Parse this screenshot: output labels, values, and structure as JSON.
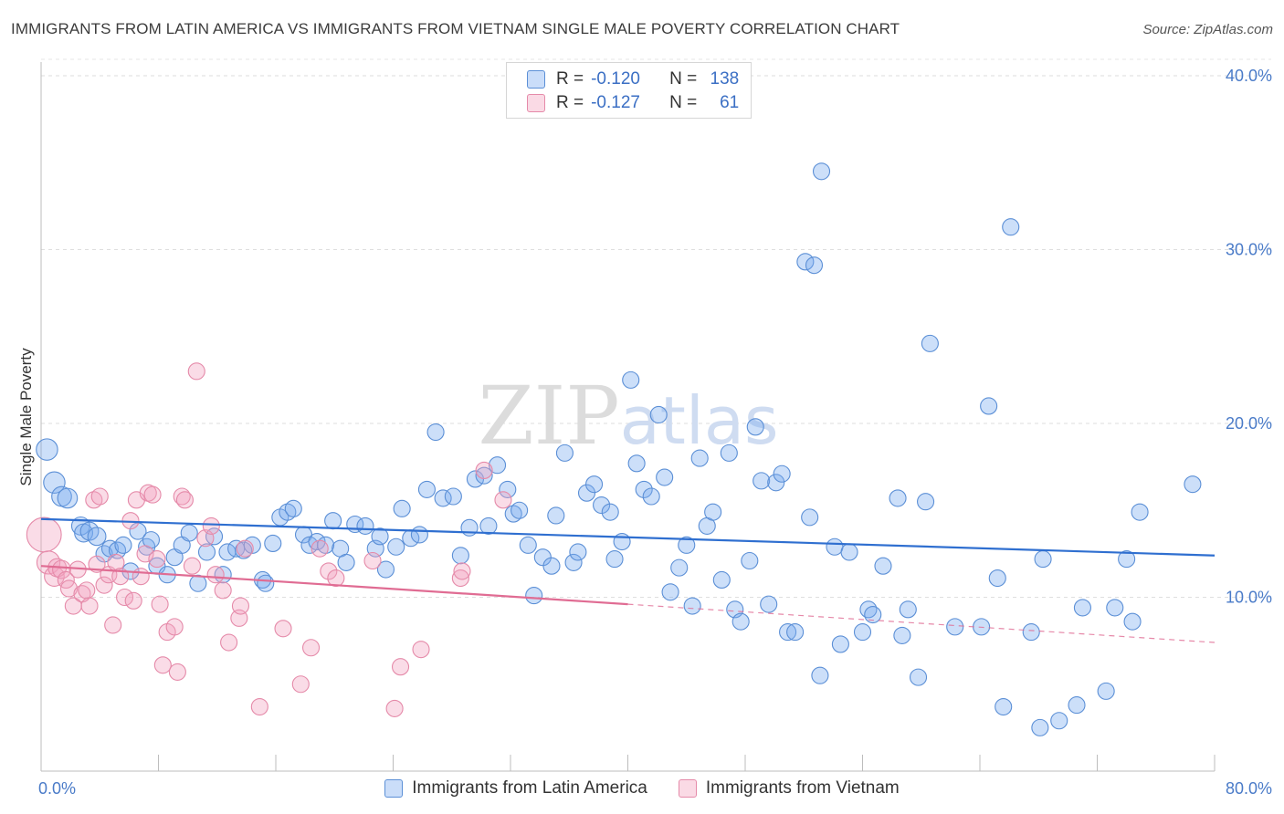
{
  "title": "IMMIGRANTS FROM LATIN AMERICA VS IMMIGRANTS FROM VIETNAM SINGLE MALE POVERTY CORRELATION CHART",
  "source": "Source: ZipAtlas.com",
  "watermark": {
    "part1": "ZIP",
    "part2": "atlas"
  },
  "legend": {
    "rows": [
      {
        "r_label": "R =",
        "r_value": "-0.120",
        "n_label": "N =",
        "n_value": "138",
        "color": "#7aaaf0"
      },
      {
        "r_label": "R =",
        "r_value": "-0.127",
        "n_label": "N =",
        "n_value": "61",
        "color": "#f3a3bf"
      }
    ]
  },
  "chart_data": {
    "type": "scatter",
    "xlabel": "",
    "ylabel": "Single Male Poverty",
    "xlim": [
      0,
      80
    ],
    "ylim": [
      0,
      40
    ],
    "x_tick_labels": [
      "0.0%",
      "80.0%"
    ],
    "y_ticks": [
      10,
      20,
      30,
      40
    ],
    "y_tick_labels": [
      "10.0%",
      "20.0%",
      "30.0%",
      "40.0%"
    ],
    "grid": "horizontal dashed",
    "legend_position": "top-center and bottom",
    "series": [
      {
        "name": "Immigrants from Latin America",
        "color": "#7aaaf0",
        "stroke": "#5b8fd6",
        "trend": {
          "x": [
            0,
            80
          ],
          "y": [
            14.5,
            12.4
          ],
          "color": "#2f6fd0"
        },
        "points": [
          [
            0.4,
            18.5,
            1.3
          ],
          [
            0.9,
            16.6,
            1.3
          ],
          [
            1.4,
            15.8,
            1.2
          ],
          [
            1.8,
            15.7,
            1.2
          ],
          [
            2.7,
            14.1,
            1.1
          ],
          [
            2.9,
            13.7,
            1.1
          ],
          [
            3.3,
            13.8,
            1.1
          ],
          [
            3.8,
            13.5,
            1.1
          ],
          [
            4.3,
            12.5,
            1
          ],
          [
            4.7,
            12.8,
            1
          ],
          [
            5.2,
            12.7,
            1
          ],
          [
            5.6,
            13.0,
            1
          ],
          [
            6.1,
            11.5,
            1
          ],
          [
            6.6,
            13.8,
            1
          ],
          [
            7.2,
            12.9,
            1
          ],
          [
            7.5,
            13.3,
            1
          ],
          [
            7.9,
            11.8,
            1
          ],
          [
            8.6,
            11.3,
            1
          ],
          [
            9.1,
            12.3,
            1
          ],
          [
            9.6,
            13.0,
            1
          ],
          [
            10.1,
            13.7,
            1
          ],
          [
            10.7,
            10.8,
            1
          ],
          [
            11.3,
            12.6,
            1
          ],
          [
            11.8,
            13.5,
            1
          ],
          [
            12.4,
            11.3,
            1
          ],
          [
            12.7,
            12.6,
            1
          ],
          [
            13.3,
            12.8,
            1
          ],
          [
            13.8,
            12.7,
            1
          ],
          [
            14.4,
            13.0,
            1
          ],
          [
            15.1,
            11.0,
            1
          ],
          [
            15.3,
            10.8,
            1
          ],
          [
            15.8,
            13.1,
            1
          ],
          [
            16.3,
            14.6,
            1
          ],
          [
            16.8,
            14.9,
            1
          ],
          [
            17.2,
            15.1,
            1
          ],
          [
            17.9,
            13.6,
            1
          ],
          [
            18.3,
            13.0,
            1
          ],
          [
            18.8,
            13.2,
            1
          ],
          [
            19.4,
            13.0,
            1
          ],
          [
            19.9,
            14.4,
            1
          ],
          [
            20.4,
            12.8,
            1
          ],
          [
            20.8,
            12.0,
            1
          ],
          [
            21.4,
            14.2,
            1
          ],
          [
            22.1,
            14.1,
            1
          ],
          [
            22.8,
            12.8,
            1
          ],
          [
            23.1,
            13.5,
            1
          ],
          [
            23.5,
            11.6,
            1
          ],
          [
            24.2,
            12.9,
            1
          ],
          [
            24.6,
            15.1,
            1
          ],
          [
            25.2,
            13.4,
            1
          ],
          [
            25.8,
            13.6,
            1
          ],
          [
            26.3,
            16.2,
            1
          ],
          [
            26.9,
            19.5,
            1
          ],
          [
            27.4,
            15.7,
            1
          ],
          [
            28.1,
            15.8,
            1
          ],
          [
            28.6,
            12.4,
            1
          ],
          [
            29.2,
            14.0,
            1
          ],
          [
            29.6,
            16.8,
            1
          ],
          [
            30.2,
            17.0,
            1
          ],
          [
            30.5,
            14.1,
            1
          ],
          [
            31.1,
            17.6,
            1
          ],
          [
            31.8,
            16.2,
            1
          ],
          [
            32.2,
            14.8,
            1
          ],
          [
            32.6,
            15.0,
            1
          ],
          [
            33.2,
            13.0,
            1
          ],
          [
            33.6,
            10.1,
            1
          ],
          [
            34.2,
            12.3,
            1
          ],
          [
            34.8,
            11.8,
            1
          ],
          [
            35.1,
            14.7,
            1
          ],
          [
            35.7,
            18.3,
            1
          ],
          [
            36.3,
            12.0,
            1
          ],
          [
            36.6,
            12.6,
            1
          ],
          [
            37.2,
            16.0,
            1
          ],
          [
            37.7,
            16.5,
            1
          ],
          [
            38.2,
            15.3,
            1
          ],
          [
            38.8,
            14.9,
            1
          ],
          [
            39.1,
            12.2,
            1
          ],
          [
            39.6,
            13.2,
            1
          ],
          [
            40.2,
            22.5,
            1
          ],
          [
            40.6,
            17.7,
            1
          ],
          [
            41.1,
            16.2,
            1
          ],
          [
            41.6,
            15.8,
            1
          ],
          [
            42.1,
            20.5,
            1
          ],
          [
            42.5,
            16.9,
            1
          ],
          [
            42.9,
            10.3,
            1
          ],
          [
            43.5,
            11.7,
            1
          ],
          [
            44.0,
            13.0,
            1
          ],
          [
            44.4,
            9.5,
            1
          ],
          [
            44.9,
            18.0,
            1
          ],
          [
            45.4,
            14.1,
            1
          ],
          [
            45.8,
            14.9,
            1
          ],
          [
            46.4,
            11.0,
            1
          ],
          [
            46.9,
            18.3,
            1
          ],
          [
            47.3,
            9.3,
            1
          ],
          [
            47.7,
            8.6,
            1
          ],
          [
            48.3,
            12.1,
            1
          ],
          [
            48.7,
            19.8,
            1
          ],
          [
            49.1,
            16.7,
            1
          ],
          [
            49.6,
            9.6,
            1
          ],
          [
            50.1,
            16.6,
            1
          ],
          [
            50.5,
            17.1,
            1
          ],
          [
            50.9,
            8.0,
            1
          ],
          [
            51.4,
            8.0,
            1
          ],
          [
            52.1,
            29.3,
            1
          ],
          [
            52.7,
            29.1,
            1
          ],
          [
            52.4,
            14.6,
            1
          ],
          [
            53.1,
            5.5,
            1
          ],
          [
            53.2,
            34.5,
            1
          ],
          [
            54.1,
            12.9,
            1
          ],
          [
            54.5,
            7.3,
            1
          ],
          [
            55.1,
            12.6,
            1
          ],
          [
            56.0,
            8.0,
            1
          ],
          [
            56.4,
            9.3,
            1
          ],
          [
            56.7,
            9.0,
            1
          ],
          [
            57.4,
            11.8,
            1
          ],
          [
            58.4,
            15.7,
            1
          ],
          [
            58.7,
            7.8,
            1
          ],
          [
            59.1,
            9.3,
            1
          ],
          [
            59.8,
            5.4,
            1
          ],
          [
            60.3,
            15.5,
            1
          ],
          [
            60.6,
            24.6,
            1
          ],
          [
            62.3,
            8.3,
            1
          ],
          [
            64.1,
            8.3,
            1
          ],
          [
            64.6,
            21.0,
            1
          ],
          [
            65.2,
            11.1,
            1
          ],
          [
            65.6,
            3.7,
            1
          ],
          [
            66.1,
            31.3,
            1
          ],
          [
            67.5,
            8.0,
            1
          ],
          [
            68.1,
            2.5,
            1
          ],
          [
            68.3,
            12.2,
            1
          ],
          [
            69.4,
            2.9,
            1
          ],
          [
            70.6,
            3.8,
            1
          ],
          [
            71.0,
            9.4,
            1
          ],
          [
            72.6,
            4.6,
            1
          ],
          [
            73.2,
            9.4,
            1
          ],
          [
            74.0,
            12.2,
            1
          ],
          [
            74.4,
            8.6,
            1
          ],
          [
            74.9,
            14.9,
            1
          ],
          [
            78.5,
            16.5,
            1
          ]
        ]
      },
      {
        "name": "Immigrants from Vietnam",
        "color": "#f3a3bf",
        "stroke": "#e58aa9",
        "trend": {
          "x": [
            0,
            40
          ],
          "y": [
            11.8,
            9.6
          ],
          "dash_to": [
            80,
            7.4
          ],
          "color": "#e06c93"
        },
        "points": [
          [
            0.2,
            13.6,
            2.1
          ],
          [
            0.5,
            12.0,
            1.4
          ],
          [
            0.9,
            11.2,
            1.2
          ],
          [
            1.1,
            11.7,
            1.1
          ],
          [
            1.4,
            11.6,
            1.1
          ],
          [
            1.7,
            11.0,
            1
          ],
          [
            1.9,
            10.5,
            1
          ],
          [
            2.2,
            9.5,
            1
          ],
          [
            2.5,
            11.6,
            1
          ],
          [
            2.8,
            10.2,
            1
          ],
          [
            3.1,
            10.4,
            1
          ],
          [
            3.3,
            9.5,
            1
          ],
          [
            3.6,
            15.6,
            1
          ],
          [
            3.8,
            11.9,
            1
          ],
          [
            4.0,
            15.8,
            1
          ],
          [
            4.3,
            10.7,
            1
          ],
          [
            4.6,
            11.3,
            1
          ],
          [
            4.9,
            8.4,
            1
          ],
          [
            5.1,
            12.0,
            1
          ],
          [
            5.4,
            11.2,
            1
          ],
          [
            5.7,
            10.0,
            1
          ],
          [
            6.1,
            14.4,
            1
          ],
          [
            6.3,
            9.8,
            1
          ],
          [
            6.5,
            15.6,
            1
          ],
          [
            6.8,
            11.2,
            1
          ],
          [
            7.1,
            12.5,
            1
          ],
          [
            7.3,
            16.0,
            1
          ],
          [
            7.6,
            15.9,
            1
          ],
          [
            7.9,
            12.2,
            1
          ],
          [
            8.1,
            9.6,
            1
          ],
          [
            8.3,
            6.1,
            1
          ],
          [
            8.6,
            8.0,
            1
          ],
          [
            9.1,
            8.3,
            1
          ],
          [
            9.3,
            5.7,
            1
          ],
          [
            9.6,
            15.8,
            1
          ],
          [
            9.8,
            15.6,
            1
          ],
          [
            10.3,
            11.8,
            1
          ],
          [
            10.6,
            23.0,
            1
          ],
          [
            11.2,
            13.4,
            1
          ],
          [
            11.6,
            14.1,
            1
          ],
          [
            11.9,
            11.3,
            1
          ],
          [
            12.4,
            10.4,
            1
          ],
          [
            12.8,
            7.4,
            1
          ],
          [
            13.5,
            8.8,
            1
          ],
          [
            13.6,
            9.5,
            1
          ],
          [
            13.9,
            12.8,
            1
          ],
          [
            14.9,
            3.7,
            1
          ],
          [
            16.5,
            8.2,
            1
          ],
          [
            17.7,
            5.0,
            1
          ],
          [
            18.4,
            7.1,
            1
          ],
          [
            19.0,
            12.8,
            1
          ],
          [
            19.6,
            11.5,
            1
          ],
          [
            20.1,
            11.1,
            1
          ],
          [
            22.6,
            12.1,
            1
          ],
          [
            24.1,
            3.6,
            1
          ],
          [
            24.5,
            6.0,
            1
          ],
          [
            25.9,
            7.0,
            1
          ],
          [
            28.6,
            11.1,
            1
          ],
          [
            28.7,
            11.5,
            1
          ],
          [
            30.2,
            17.3,
            1
          ],
          [
            31.5,
            15.6,
            1
          ]
        ]
      }
    ]
  }
}
